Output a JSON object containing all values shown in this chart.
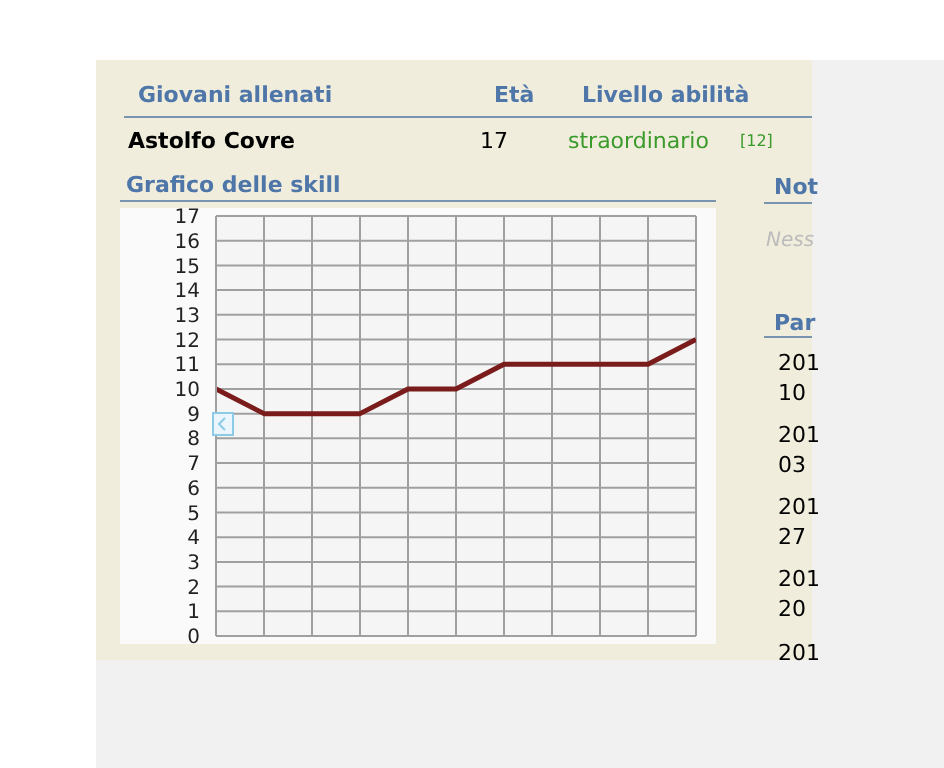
{
  "chart_data": {
    "type": "line",
    "title": "Grafico delle skill",
    "categories": [
      null,
      null,
      null,
      null,
      null,
      null,
      null,
      null,
      null,
      null,
      null
    ],
    "series": [
      {
        "color": "#7b1c1c",
        "values": [
          10,
          9,
          9,
          9,
          10,
          10,
          11,
          11,
          11,
          11,
          12
        ]
      }
    ],
    "ylim": [
      0,
      17
    ],
    "yticks": [
      0,
      1,
      2,
      3,
      4,
      5,
      6,
      7,
      8,
      9,
      10,
      11,
      12,
      13,
      14,
      15,
      16,
      17
    ],
    "grid": true,
    "tick_labels": "y",
    "marker": "none",
    "line_style": "solid",
    "legend": false,
    "annotations": [
      "Giovani allenati",
      "Età",
      "Livello abilità",
      "Astolfo Covre",
      "17",
      "straordinario",
      "[12]",
      "Not",
      "Ness",
      "Par",
      "201",
      "10",
      "201",
      "03",
      "201",
      "27",
      "201",
      "20",
      "201"
    ]
  }
}
